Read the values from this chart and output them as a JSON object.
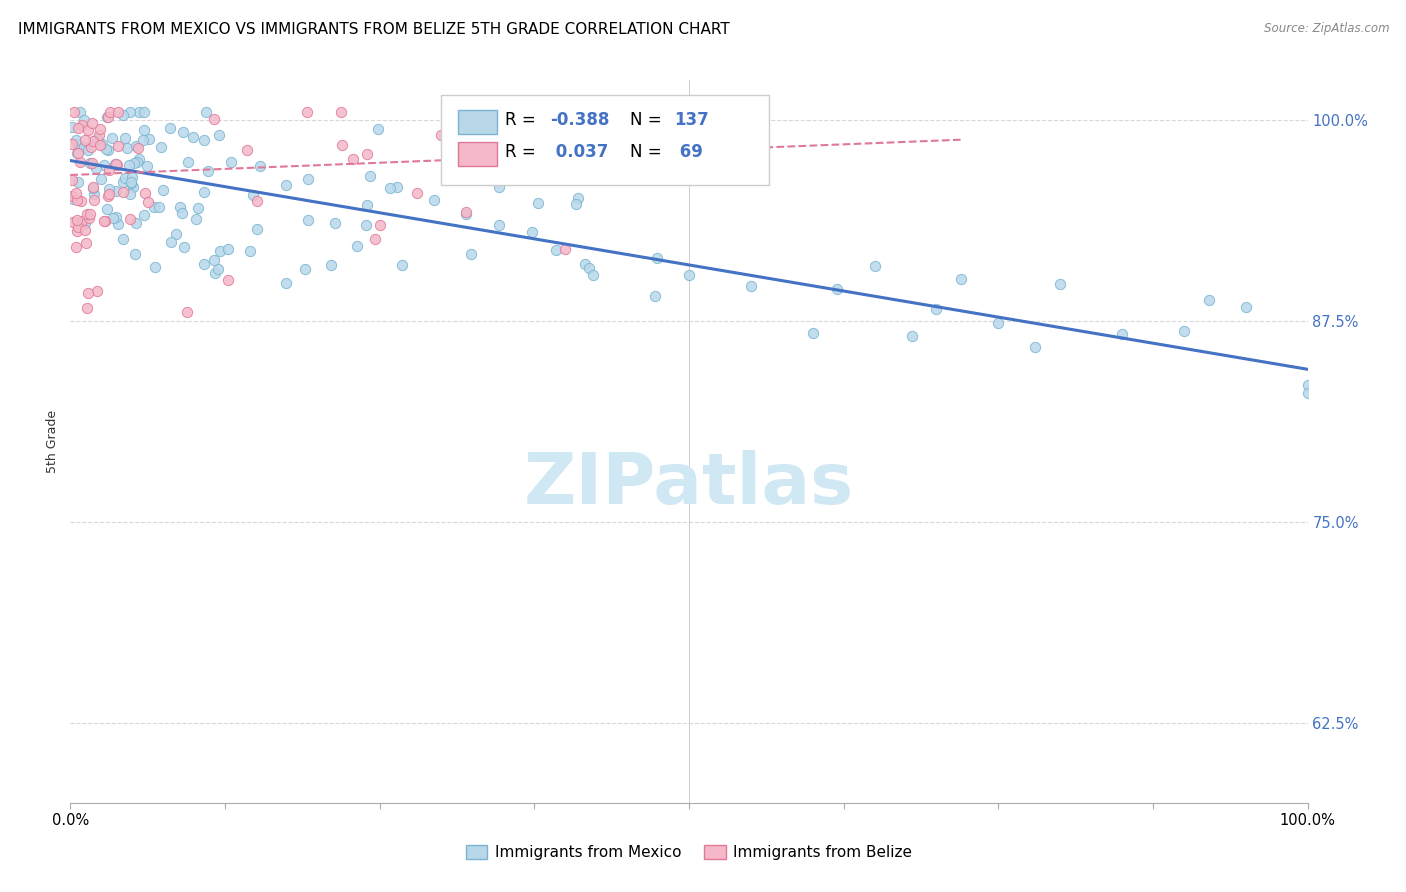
{
  "title": "IMMIGRANTS FROM MEXICO VS IMMIGRANTS FROM BELIZE 5TH GRADE CORRELATION CHART",
  "source": "Source: ZipAtlas.com",
  "ylabel": "5th Grade",
  "watermark": "ZIPatlas",
  "ytick_labels": [
    "62.5%",
    "75.0%",
    "87.5%",
    "100.0%"
  ],
  "ytick_values": [
    0.625,
    0.75,
    0.875,
    1.0
  ],
  "scatter_color_blue": "#b8d8ea",
  "scatter_color_pink": "#f4b8c8",
  "scatter_edgecolor_blue": "#7ab4d0",
  "scatter_edgecolor_pink": "#e07898",
  "line_color_blue": "#4472c4",
  "line_color_pink": "#e07898",
  "background_color": "#ffffff",
  "grid_color": "#d8d8d8",
  "title_fontsize": 11,
  "watermark_color": "#d0e8f4",
  "watermark_fontsize": 52,
  "xmin": 0.0,
  "xmax": 1.0,
  "ymin": 0.575,
  "ymax": 1.025,
  "blue_line_x0": 0.0,
  "blue_line_x1": 1.0,
  "blue_line_y0": 0.975,
  "blue_line_y1": 0.845,
  "pink_line_x0": 0.0,
  "pink_line_x1": 0.72,
  "pink_line_y0": 0.966,
  "pink_line_y1": 0.988
}
